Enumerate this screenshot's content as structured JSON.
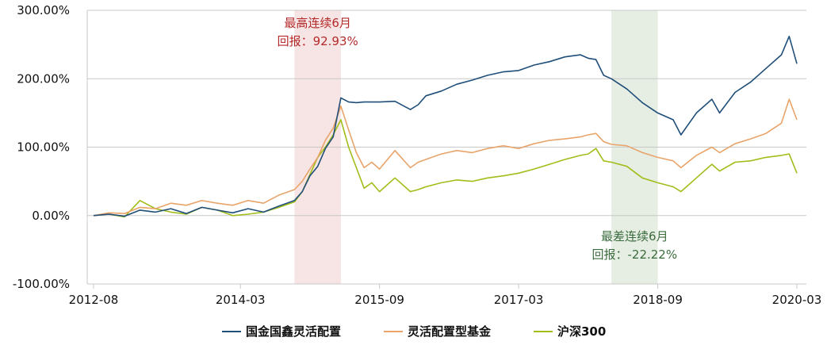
{
  "chart_data": {
    "type": "line",
    "title": "",
    "xlabel": "",
    "ylabel": "",
    "x_ticks": [
      "2012-08",
      "2014-03",
      "2015-09",
      "2017-03",
      "2018-09",
      "2020-03"
    ],
    "y_ticks": [
      "300.00%",
      "200.00%",
      "100.00%",
      "0.00%",
      "-100.00%"
    ],
    "ylim": [
      -100,
      300
    ],
    "xlim": [
      "2012-08",
      "2020-03"
    ],
    "grid": "horizontal",
    "legend_position": "bottom",
    "colors": {
      "fund": "#1F4E79",
      "category": "#E8A46A",
      "index": "#A2BD19",
      "grid": "#C8C8C8",
      "best_band": "#F7E4E4",
      "worst_band": "#E6EEE4",
      "best_text": "#B42A2A",
      "worst_text": "#3A6B3C"
    },
    "series": [
      {
        "name": "国金国鑫灵活配置",
        "color": "#1F4E79",
        "x": [
          "2012-08",
          "2012-10",
          "2012-12",
          "2013-02",
          "2013-04",
          "2013-06",
          "2013-08",
          "2013-10",
          "2013-12",
          "2014-02",
          "2014-04",
          "2014-06",
          "2014-08",
          "2014-10",
          "2014-11",
          "2014-12",
          "2015-01",
          "2015-02",
          "2015-03",
          "2015-04",
          "2015-05",
          "2015-06",
          "2015-07",
          "2015-08",
          "2015-09",
          "2015-11",
          "2016-01",
          "2016-02",
          "2016-03",
          "2016-05",
          "2016-07",
          "2016-09",
          "2016-11",
          "2017-01",
          "2017-03",
          "2017-05",
          "2017-07",
          "2017-09",
          "2017-11",
          "2017-12",
          "2018-01",
          "2018-02",
          "2018-03",
          "2018-05",
          "2018-07",
          "2018-09",
          "2018-11",
          "2018-12",
          "2019-02",
          "2019-04",
          "2019-05",
          "2019-07",
          "2019-09",
          "2019-11",
          "2020-01",
          "2020-02",
          "2020-03"
        ],
        "values": [
          0,
          2,
          -1,
          8,
          5,
          10,
          3,
          12,
          8,
          4,
          10,
          5,
          14,
          22,
          35,
          58,
          72,
          98,
          115,
          172,
          166,
          165,
          166,
          166,
          166,
          167,
          155,
          162,
          175,
          182,
          192,
          198,
          205,
          210,
          212,
          220,
          225,
          232,
          235,
          230,
          228,
          205,
          200,
          185,
          165,
          150,
          140,
          118,
          150,
          170,
          150,
          180,
          195,
          215,
          235,
          262,
          222
        ]
      },
      {
        "name": "灵活配置型基金",
        "color": "#E8A46A",
        "x": [
          "2012-08",
          "2012-10",
          "2012-12",
          "2013-02",
          "2013-04",
          "2013-06",
          "2013-08",
          "2013-10",
          "2013-12",
          "2014-02",
          "2014-04",
          "2014-06",
          "2014-08",
          "2014-10",
          "2014-11",
          "2014-12",
          "2015-01",
          "2015-02",
          "2015-03",
          "2015-04",
          "2015-05",
          "2015-06",
          "2015-07",
          "2015-08",
          "2015-09",
          "2015-11",
          "2016-01",
          "2016-02",
          "2016-03",
          "2016-05",
          "2016-07",
          "2016-09",
          "2016-11",
          "2017-01",
          "2017-03",
          "2017-05",
          "2017-07",
          "2017-09",
          "2017-11",
          "2017-12",
          "2018-01",
          "2018-02",
          "2018-03",
          "2018-05",
          "2018-07",
          "2018-09",
          "2018-11",
          "2018-12",
          "2019-02",
          "2019-04",
          "2019-05",
          "2019-07",
          "2019-09",
          "2019-11",
          "2020-01",
          "2020-02",
          "2020-03"
        ],
        "values": [
          0,
          4,
          3,
          12,
          10,
          18,
          15,
          22,
          18,
          15,
          22,
          18,
          30,
          38,
          50,
          68,
          85,
          110,
          128,
          160,
          125,
          92,
          70,
          78,
          68,
          95,
          70,
          78,
          82,
          90,
          95,
          92,
          98,
          102,
          98,
          105,
          110,
          112,
          115,
          118,
          120,
          108,
          104,
          102,
          92,
          85,
          80,
          70,
          88,
          100,
          92,
          105,
          112,
          120,
          135,
          170,
          140
        ]
      },
      {
        "name": "沪深300",
        "color": "#A2BD19",
        "x": [
          "2012-08",
          "2012-10",
          "2012-12",
          "2013-02",
          "2013-04",
          "2013-06",
          "2013-08",
          "2013-10",
          "2013-12",
          "2014-02",
          "2014-04",
          "2014-06",
          "2014-08",
          "2014-10",
          "2014-11",
          "2014-12",
          "2015-01",
          "2015-02",
          "2015-03",
          "2015-04",
          "2015-05",
          "2015-06",
          "2015-07",
          "2015-08",
          "2015-09",
          "2015-11",
          "2016-01",
          "2016-02",
          "2016-03",
          "2016-05",
          "2016-07",
          "2016-09",
          "2016-11",
          "2017-01",
          "2017-03",
          "2017-05",
          "2017-07",
          "2017-09",
          "2017-11",
          "2017-12",
          "2018-01",
          "2018-02",
          "2018-03",
          "2018-05",
          "2018-07",
          "2018-09",
          "2018-11",
          "2018-12",
          "2019-02",
          "2019-04",
          "2019-05",
          "2019-07",
          "2019-09",
          "2019-11",
          "2020-01",
          "2020-02",
          "2020-03"
        ],
        "values": [
          0,
          2,
          -2,
          22,
          10,
          5,
          2,
          12,
          8,
          0,
          2,
          5,
          12,
          20,
          35,
          60,
          85,
          100,
          118,
          140,
          100,
          70,
          40,
          48,
          35,
          55,
          35,
          38,
          42,
          48,
          52,
          50,
          55,
          58,
          62,
          68,
          75,
          82,
          88,
          90,
          98,
          80,
          78,
          72,
          55,
          48,
          42,
          35,
          55,
          75,
          65,
          78,
          80,
          85,
          88,
          90,
          62
        ]
      }
    ],
    "highlights": [
      {
        "label": "最高连续6月",
        "return_label": "回报：92.93%",
        "start": "2014-10",
        "end": "2015-04"
      },
      {
        "label": "最差连续6月",
        "return_label": "回报：-22.22%",
        "start": "2018-03",
        "end": "2018-09"
      }
    ]
  }
}
